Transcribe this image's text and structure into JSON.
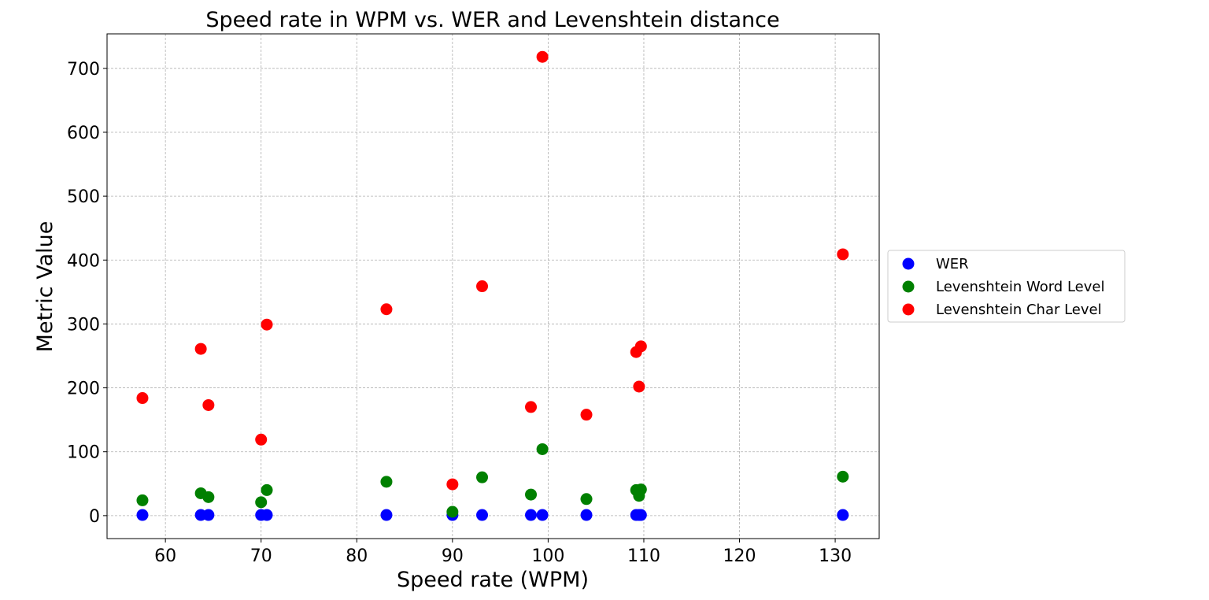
{
  "chart_data": {
    "type": "scatter",
    "title": "Speed rate in WPM vs. WER and Levenshtein distance",
    "xlabel": "Speed rate (WPM)",
    "ylabel": "Metric Value",
    "xlim": [
      53.9,
      134.6
    ],
    "ylim": [
      -35.9,
      754
    ],
    "xticks": [
      60,
      70,
      80,
      90,
      100,
      110,
      120,
      130
    ],
    "yticks": [
      0,
      100,
      200,
      300,
      400,
      500,
      600,
      700
    ],
    "grid": true,
    "legend_position": "center-right-outside",
    "series": [
      {
        "name": "WER",
        "color": "#0000ff",
        "points": [
          [
            57.6,
            1
          ],
          [
            63.7,
            1
          ],
          [
            64.5,
            1
          ],
          [
            70.0,
            1
          ],
          [
            70.6,
            1
          ],
          [
            83.1,
            1
          ],
          [
            90.0,
            1
          ],
          [
            93.1,
            1
          ],
          [
            98.2,
            1
          ],
          [
            99.4,
            1
          ],
          [
            104.0,
            1
          ],
          [
            109.2,
            1
          ],
          [
            109.5,
            1
          ],
          [
            109.7,
            1
          ],
          [
            130.8,
            1
          ]
        ]
      },
      {
        "name": "Levenshtein Word Level",
        "color": "#008000",
        "points": [
          [
            57.6,
            24
          ],
          [
            63.7,
            35
          ],
          [
            64.5,
            29
          ],
          [
            70.0,
            21
          ],
          [
            70.6,
            40
          ],
          [
            83.1,
            53
          ],
          [
            90.0,
            6
          ],
          [
            93.1,
            60
          ],
          [
            98.2,
            33
          ],
          [
            99.4,
            104
          ],
          [
            104.0,
            26
          ],
          [
            109.2,
            40
          ],
          [
            109.5,
            31
          ],
          [
            109.7,
            41
          ],
          [
            130.8,
            61
          ]
        ]
      },
      {
        "name": "Levenshtein Char Level",
        "color": "#ff0000",
        "points": [
          [
            57.6,
            184
          ],
          [
            63.7,
            261
          ],
          [
            64.5,
            173
          ],
          [
            70.0,
            119
          ],
          [
            70.6,
            299
          ],
          [
            83.1,
            323
          ],
          [
            90.0,
            49
          ],
          [
            93.1,
            359
          ],
          [
            98.2,
            170
          ],
          [
            99.4,
            718
          ],
          [
            104.0,
            158
          ],
          [
            109.2,
            256
          ],
          [
            109.5,
            202
          ],
          [
            109.7,
            265
          ],
          [
            130.8,
            409
          ]
        ]
      }
    ]
  }
}
